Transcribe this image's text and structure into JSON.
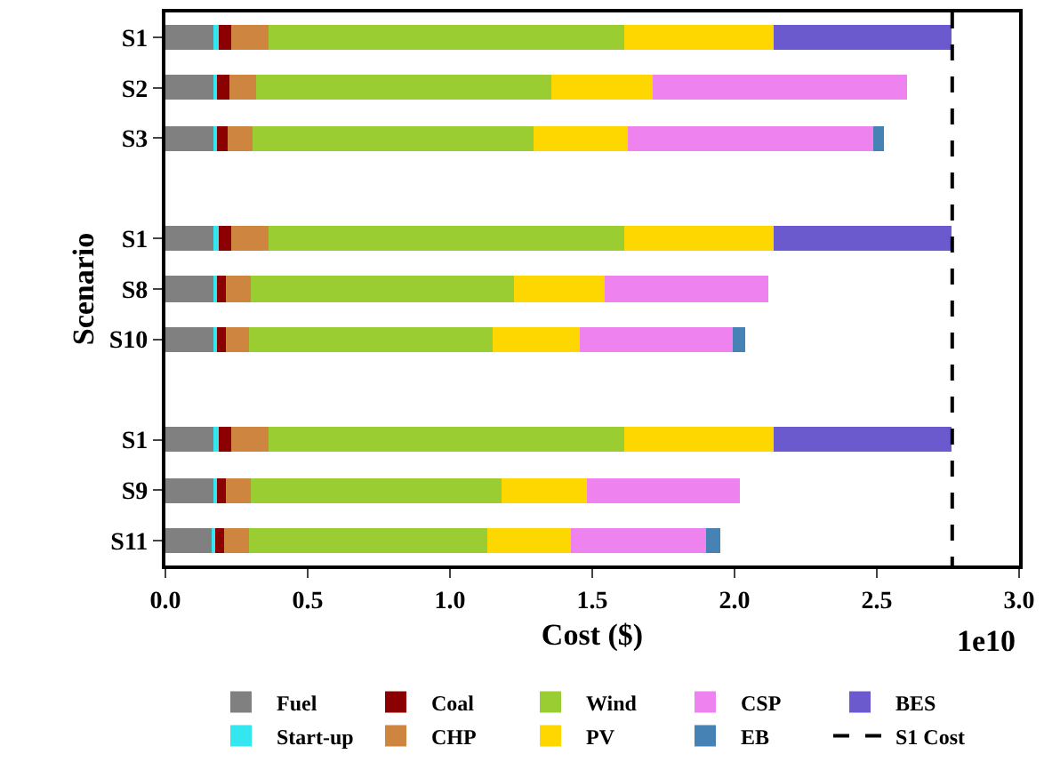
{
  "chart_data": {
    "type": "bar",
    "orientation": "horizontal",
    "stacked": true,
    "xlabel": "Cost ($)",
    "ylabel": "Scenario",
    "categories": [
      "S1",
      "S2",
      "S3",
      null,
      "S1",
      "S8",
      "S10",
      null,
      "S1",
      "S9",
      "S11"
    ],
    "xlim": [
      0,
      3.0
    ],
    "xticks": [
      {
        "value": 0,
        "label": "0.0"
      },
      0.5,
      {
        "value": 1,
        "label": "1.0"
      },
      1.5,
      {
        "value": 2,
        "label": "2.0"
      },
      2.5,
      {
        "value": 3,
        "label": "3.0"
      }
    ],
    "annotations": [
      "1e10"
    ],
    "legend": "bottom",
    "series": [
      {
        "name": "Fuel",
        "color": "#808080",
        "values": [
          0.17,
          0.17,
          0.17,
          null,
          0.17,
          0.17,
          0.17,
          null,
          0.17,
          0.17,
          0.167
        ]
      },
      {
        "name": "Start-up",
        "color": "#33e6f0",
        "values": [
          0.015,
          0.013,
          0.013,
          null,
          0.015,
          0.012,
          0.012,
          null,
          0.015,
          0.011,
          0.011
        ]
      },
      {
        "name": "Coal",
        "color": "#8b0000",
        "values": [
          0.045,
          0.042,
          0.036,
          null,
          0.045,
          0.031,
          0.028,
          null,
          0.045,
          0.03,
          0.029
        ]
      },
      {
        "name": "CHP",
        "color": "#cd853f",
        "values": [
          0.13,
          0.094,
          0.089,
          null,
          0.13,
          0.089,
          0.086,
          null,
          0.13,
          0.088,
          0.088
        ]
      },
      {
        "name": "Wind",
        "color": "#9acd32",
        "values": [
          1.255,
          1.037,
          0.988,
          null,
          1.255,
          0.923,
          0.852,
          null,
          1.255,
          0.885,
          0.839
        ]
      },
      {
        "name": "PV",
        "color": "#ffd700",
        "values": [
          0.52,
          0.359,
          0.331,
          null,
          0.52,
          0.319,
          0.31,
          null,
          0.52,
          0.3,
          0.294
        ]
      },
      {
        "name": "CSP",
        "color": "#ee82ee",
        "values": [
          null,
          0.891,
          0.863,
          null,
          null,
          0.575,
          0.538,
          null,
          null,
          0.534,
          0.471
        ]
      },
      {
        "name": "EB",
        "color": "#4682b4",
        "values": [
          null,
          null,
          0.035,
          null,
          null,
          null,
          0.044,
          null,
          null,
          null,
          0.05
        ]
      },
      {
        "name": "BES",
        "color": "#6a5acd",
        "values": [
          0.63,
          null,
          null,
          null,
          0.63,
          null,
          null,
          null,
          0.63,
          null,
          null
        ]
      }
    ],
    "ref_lines": [
      {
        "axis": "x",
        "value": 2.765,
        "label": "S1 Cost",
        "color": "#000000",
        "line_style": "dashed"
      }
    ]
  }
}
